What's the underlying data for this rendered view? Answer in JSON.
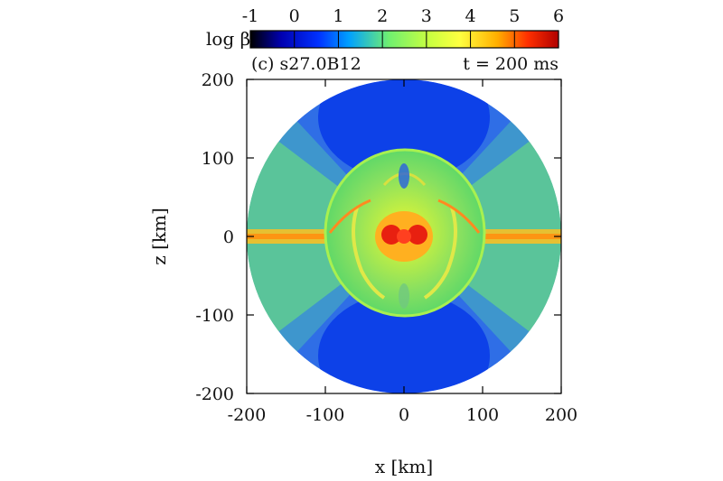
{
  "chart_data": {
    "type": "heatmap",
    "panel_label": "(c) s27.0B12",
    "time_label": "t = 200 ms",
    "xlabel": "x [km]",
    "ylabel": "z [km]",
    "xlim": [
      -200,
      200
    ],
    "ylim": [
      -200,
      200
    ],
    "xticks": [
      "-200",
      "-100",
      "0",
      "100",
      "200"
    ],
    "yticks": [
      "200",
      "100",
      "0",
      "-100",
      "-200"
    ],
    "colorbar": {
      "label": "log β",
      "range": [
        -1,
        6
      ],
      "ticks": [
        "-1",
        "0",
        "1",
        "2",
        "3",
        "4",
        "5",
        "6"
      ],
      "colors": [
        "#000000",
        "#0000c8",
        "#0050ff",
        "#00c0ff",
        "#80ff60",
        "#ffff40",
        "#ffb000",
        "#ff2000",
        "#b00000"
      ]
    },
    "grid": false,
    "domain_radius_km": 200,
    "notes": ""
  }
}
